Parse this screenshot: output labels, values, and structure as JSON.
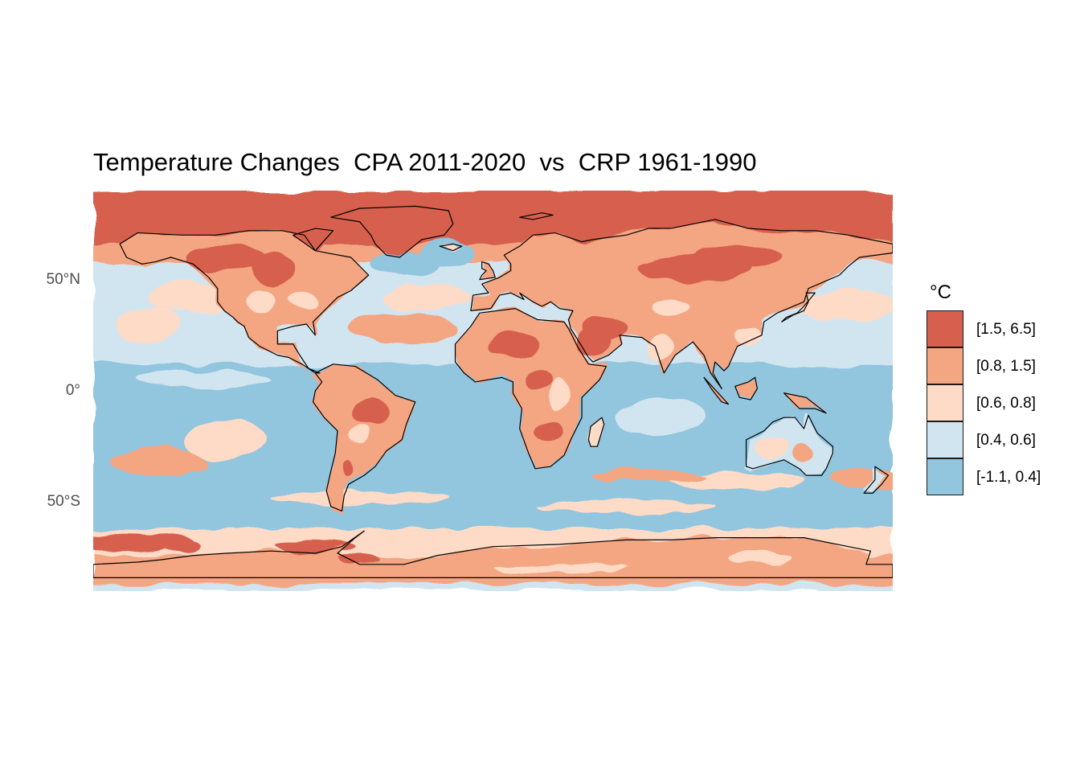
{
  "title": "Temperature Changes  CPA 2011-2020  vs  CRP 1961-1990",
  "map": {
    "projection": "equirectangular",
    "lon_range": [
      -180,
      180
    ],
    "lat_range": [
      -90,
      90
    ],
    "coastlines": "black outlines",
    "grid": "faint"
  },
  "y_axis": {
    "ticks": [
      {
        "lat": 50,
        "label": "50°N"
      },
      {
        "lat": 0,
        "label": "0°"
      },
      {
        "lat": -50,
        "label": "50°S"
      }
    ]
  },
  "legend": {
    "title": "°C",
    "placement": "right",
    "items": [
      {
        "label": "[1.5, 6.5]",
        "color": "#d6604d"
      },
      {
        "label": "[0.8, 1.5]",
        "color": "#f4a582"
      },
      {
        "label": "[0.6, 0.8]",
        "color": "#fddbc7"
      },
      {
        "label": "[0.4, 0.6]",
        "color": "#d1e5f0"
      },
      {
        "label": "[-1.1, 0.4]",
        "color": "#92c5de"
      }
    ]
  }
}
